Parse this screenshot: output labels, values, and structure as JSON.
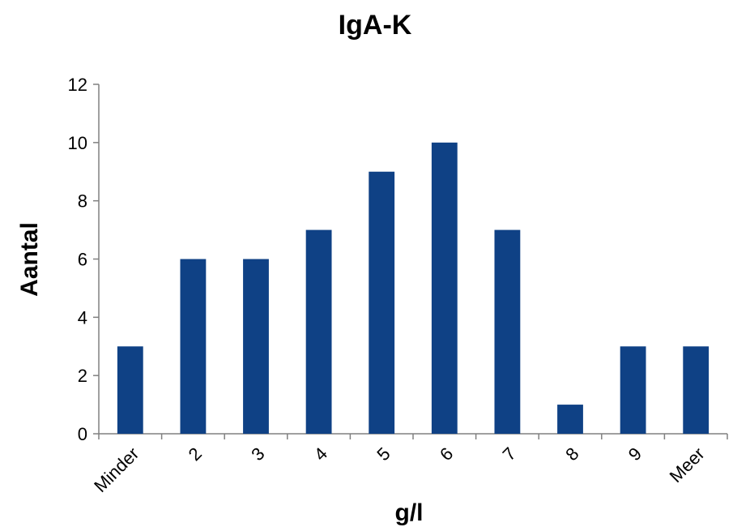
{
  "chart_data": {
    "type": "bar",
    "title": "IgA-K",
    "xlabel": "g/l",
    "ylabel": "Aantal",
    "categories": [
      "Minder",
      "2",
      "3",
      "4",
      "5",
      "6",
      "7",
      "8",
      "9",
      "Meer"
    ],
    "values": [
      3,
      6,
      6,
      7,
      9,
      10,
      7,
      1,
      3,
      3
    ],
    "ylim": [
      0,
      12
    ],
    "yticks": [
      "0",
      "2",
      "4",
      "6",
      "8",
      "10",
      "12"
    ],
    "grid": false,
    "legend": "none",
    "bar_color": "#0f4185"
  }
}
